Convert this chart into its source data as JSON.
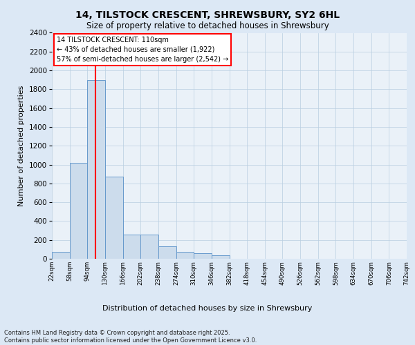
{
  "title": "14, TILSTOCK CRESCENT, SHREWSBURY, SY2 6HL",
  "subtitle": "Size of property relative to detached houses in Shrewsbury",
  "xlabel": "Distribution of detached houses by size in Shrewsbury",
  "ylabel": "Number of detached properties",
  "bins": [
    "22sqm",
    "58sqm",
    "94sqm",
    "130sqm",
    "166sqm",
    "202sqm",
    "238sqm",
    "274sqm",
    "310sqm",
    "346sqm",
    "382sqm",
    "418sqm",
    "454sqm",
    "490sqm",
    "526sqm",
    "562sqm",
    "598sqm",
    "634sqm",
    "670sqm",
    "706sqm",
    "742sqm"
  ],
  "values": [
    75,
    1020,
    1900,
    870,
    260,
    260,
    130,
    75,
    55,
    40,
    0,
    0,
    0,
    0,
    0,
    0,
    0,
    0,
    0,
    0
  ],
  "bar_color": "#ccdcec",
  "bar_edge_color": "#6699cc",
  "bar_linewidth": 0.7,
  "redline_x": 2.44,
  "annotation_text": "14 TILSTOCK CRESCENT: 110sqm\n← 43% of detached houses are smaller (1,922)\n57% of semi-detached houses are larger (2,542) →",
  "ylim_max": 2400,
  "ytick_step": 200,
  "bg_color": "#dce8f5",
  "plot_bg_color": "#eaf1f8",
  "grid_color": "#b8cee0",
  "footnote": "Contains HM Land Registry data © Crown copyright and database right 2025.\nContains public sector information licensed under the Open Government Licence v3.0."
}
